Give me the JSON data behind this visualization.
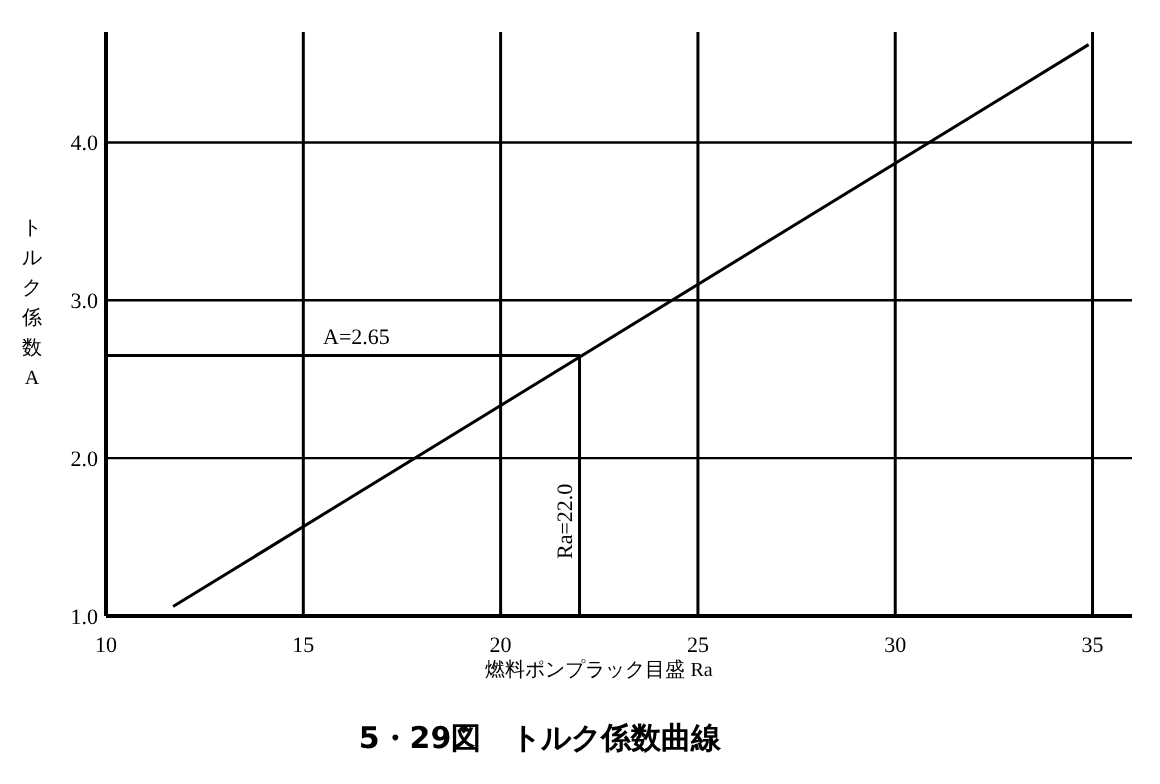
{
  "chart_data": {
    "type": "line",
    "title": "5・29図　トルク係数曲線",
    "xlabel": "燃料ポンプラック目盛 Ra",
    "ylabel": "トルク係数A",
    "xlim": [
      10,
      36
    ],
    "ylim": [
      1,
      4.7
    ],
    "xticks": [
      10,
      15,
      20,
      25,
      30,
      35
    ],
    "yticks": [
      {
        "value": 1,
        "label": "1.0"
      },
      {
        "value": 2,
        "label": "2.0"
      },
      {
        "value": 3,
        "label": "3.0"
      },
      {
        "value": 4,
        "label": "4.0"
      }
    ],
    "grid": true,
    "marker": "none",
    "line_style": "solid",
    "series": [
      {
        "color": "#000000",
        "x": [
          11.7,
          34.9
        ],
        "values": [
          1.06,
          4.62
        ]
      },
      {
        "color": "#000000",
        "x": [
          10,
          22,
          22
        ],
        "values": [
          2.65,
          2.65,
          1.0
        ]
      }
    ],
    "annotations": [
      {
        "text": "A=2.65",
        "x": 15.5,
        "y": 2.65
      },
      {
        "text": "Ra=22.0",
        "x": 22,
        "y": 1.6
      }
    ]
  }
}
